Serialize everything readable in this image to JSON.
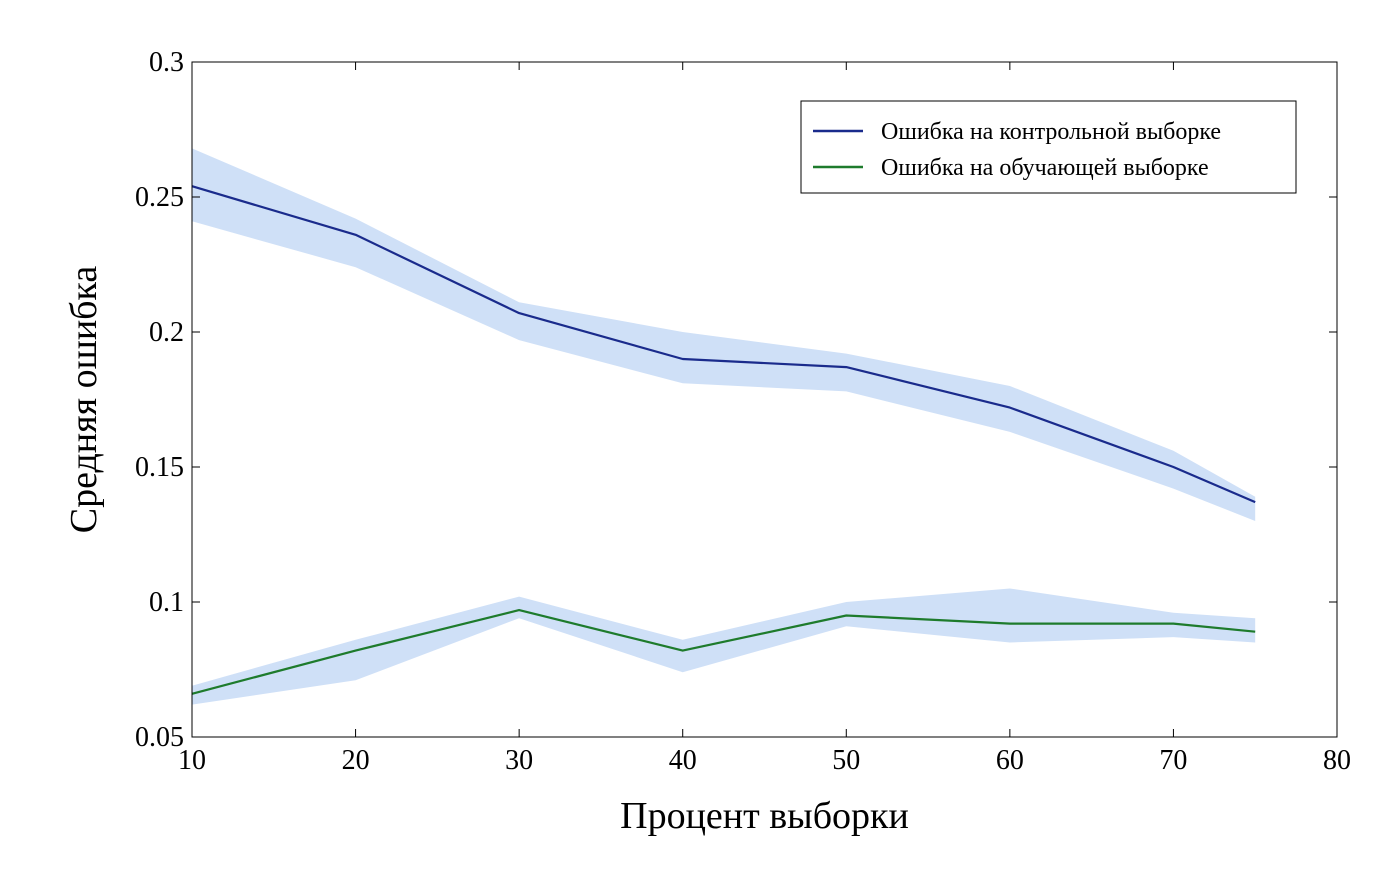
{
  "chart_data": {
    "type": "line",
    "title": "",
    "xlabel": "Процент выборки",
    "ylabel": "Средняя ошибка",
    "xlim": [
      10,
      80
    ],
    "ylim": [
      0.05,
      0.3
    ],
    "x_ticks": [
      10,
      20,
      30,
      40,
      50,
      60,
      70,
      80
    ],
    "x_tick_labels": [
      "10",
      "20",
      "30",
      "40",
      "50",
      "60",
      "70",
      "80"
    ],
    "y_ticks": [
      0.05,
      0.1,
      0.15,
      0.2,
      0.25,
      0.3
    ],
    "y_tick_labels": [
      "0.05",
      "0.1",
      "0.15",
      "0.2",
      "0.25",
      "0.3"
    ],
    "grid": false,
    "legend_position": "top-right",
    "band_color": "#cfe0f7",
    "x": [
      10,
      20,
      30,
      40,
      50,
      60,
      70,
      75
    ],
    "series": [
      {
        "name": "Ошибка на контрольной выборке",
        "color": "#1a2b8c",
        "values": [
          0.254,
          0.236,
          0.207,
          0.19,
          0.187,
          0.172,
          0.15,
          0.137
        ],
        "lower": [
          0.241,
          0.224,
          0.197,
          0.181,
          0.178,
          0.163,
          0.142,
          0.13
        ],
        "upper": [
          0.268,
          0.242,
          0.211,
          0.2,
          0.192,
          0.18,
          0.156,
          0.139
        ]
      },
      {
        "name": "Ошибка на обучающей выборке",
        "color": "#1e7b2c",
        "values": [
          0.066,
          0.082,
          0.097,
          0.082,
          0.095,
          0.092,
          0.092,
          0.089
        ],
        "lower": [
          0.062,
          0.071,
          0.094,
          0.074,
          0.091,
          0.085,
          0.087,
          0.085
        ],
        "upper": [
          0.069,
          0.086,
          0.102,
          0.086,
          0.1,
          0.105,
          0.096,
          0.094
        ]
      }
    ]
  }
}
